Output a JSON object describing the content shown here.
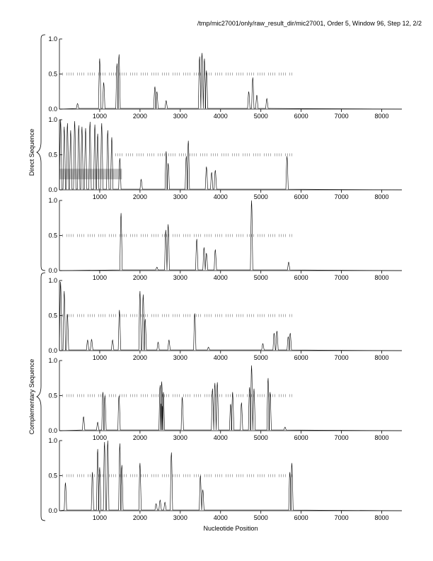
{
  "chart_data": {
    "type": "line",
    "title": "/tmp/mic27001/only/raw_result_dir/mic27001, Order 5, Window 96, Step 12, 2/2",
    "xlabel": "Nucleotide Position",
    "group_labels": [
      "Direct Sequence",
      "Complementary Sequence"
    ],
    "xlim": [
      0,
      8500
    ],
    "ylim": [
      0,
      1
    ],
    "x_ticks": [
      1000,
      2000,
      3000,
      4000,
      5000,
      6000,
      7000,
      8000
    ],
    "x_tick_labels": [
      "1000",
      "2000",
      "3000",
      "4000",
      "5000",
      "6000",
      "7000",
      "8000"
    ],
    "y_ticks": [
      0,
      0.5,
      1
    ],
    "y_tick_labels": [
      "0.0",
      "0.5",
      "1.0"
    ],
    "colors": {
      "line": "#000000",
      "band": "#c0c0c0",
      "dots": "#555555"
    },
    "panels": [
      {
        "name": "direct-frame-1",
        "dotted_level": 0.5,
        "dotted_range": [
          80,
          5800
        ],
        "peaks": [
          [
            450,
            0.08
          ],
          [
            1000,
            0.72
          ],
          [
            1100,
            0.38
          ],
          [
            1430,
            0.65
          ],
          [
            1480,
            0.78
          ],
          [
            2370,
            0.32
          ],
          [
            2420,
            0.25
          ],
          [
            2650,
            0.12
          ],
          [
            3480,
            0.75
          ],
          [
            3540,
            0.8
          ],
          [
            3600,
            0.72
          ],
          [
            3650,
            0.55
          ],
          [
            4700,
            0.25
          ],
          [
            4800,
            0.45
          ],
          [
            4900,
            0.2
          ],
          [
            5150,
            0.15
          ]
        ]
      },
      {
        "name": "direct-frame-2",
        "dotted_level": 0.5,
        "dotted_range": [
          1400,
          5800
        ],
        "band": {
          "x_range": [
            0,
            1550
          ],
          "y_range": [
            0.15,
            0.3
          ]
        },
        "peaks": [
          [
            30,
            1.0
          ],
          [
            120,
            0.9
          ],
          [
            200,
            0.95
          ],
          [
            280,
            0.85
          ],
          [
            380,
            0.98
          ],
          [
            480,
            0.92
          ],
          [
            560,
            0.9
          ],
          [
            650,
            0.88
          ],
          [
            760,
            0.97
          ],
          [
            880,
            0.93
          ],
          [
            950,
            0.8
          ],
          [
            1050,
            0.95
          ],
          [
            1200,
            0.85
          ],
          [
            1300,
            0.75
          ],
          [
            1500,
            0.45
          ],
          [
            2030,
            0.15
          ],
          [
            2650,
            0.55
          ],
          [
            2700,
            0.38
          ],
          [
            3150,
            0.48
          ],
          [
            3200,
            0.7
          ],
          [
            3650,
            0.33
          ],
          [
            3780,
            0.25
          ],
          [
            3870,
            0.28
          ],
          [
            5650,
            0.48
          ]
        ]
      },
      {
        "name": "direct-frame-3",
        "dotted_level": 0.5,
        "dotted_range": [
          80,
          5800
        ],
        "peaks": [
          [
            1530,
            0.82
          ],
          [
            2420,
            0.05
          ],
          [
            2640,
            0.58
          ],
          [
            2700,
            0.66
          ],
          [
            3410,
            0.45
          ],
          [
            3590,
            0.33
          ],
          [
            3650,
            0.25
          ],
          [
            3870,
            0.3
          ],
          [
            4770,
            1.0
          ],
          [
            5690,
            0.12
          ]
        ]
      },
      {
        "name": "complementary-frame-1",
        "dotted_level": 0.5,
        "dotted_range": [
          80,
          5800
        ],
        "peaks": [
          [
            30,
            0.98
          ],
          [
            120,
            0.85
          ],
          [
            200,
            0.52
          ],
          [
            700,
            0.15
          ],
          [
            800,
            0.16
          ],
          [
            1320,
            0.15
          ],
          [
            1490,
            0.58
          ],
          [
            2000,
            0.85
          ],
          [
            2080,
            0.8
          ],
          [
            2130,
            0.45
          ],
          [
            2450,
            0.12
          ],
          [
            2720,
            0.15
          ],
          [
            3360,
            0.53
          ],
          [
            3700,
            0.05
          ],
          [
            5050,
            0.1
          ],
          [
            5330,
            0.25
          ],
          [
            5400,
            0.28
          ],
          [
            5680,
            0.2
          ],
          [
            5730,
            0.25
          ]
        ]
      },
      {
        "name": "complementary-frame-2",
        "dotted_level": 0.5,
        "dotted_range": [
          80,
          5800
        ],
        "peaks": [
          [
            600,
            0.2
          ],
          [
            950,
            0.12
          ],
          [
            1080,
            0.55
          ],
          [
            1130,
            0.5
          ],
          [
            1480,
            0.5
          ],
          [
            2500,
            0.65
          ],
          [
            2540,
            0.7
          ],
          [
            2580,
            0.55
          ],
          [
            3050,
            0.48
          ],
          [
            3800,
            0.6
          ],
          [
            3860,
            0.68
          ],
          [
            3920,
            0.69
          ],
          [
            4250,
            0.38
          ],
          [
            4300,
            0.55
          ],
          [
            4520,
            0.4
          ],
          [
            4720,
            0.62
          ],
          [
            4770,
            0.93
          ],
          [
            4830,
            0.6
          ],
          [
            5180,
            0.75
          ],
          [
            5230,
            0.55
          ],
          [
            5600,
            0.05
          ]
        ]
      },
      {
        "name": "complementary-frame-3",
        "dotted_level": 0.5,
        "dotted_range": [
          80,
          5800
        ],
        "peaks": [
          [
            150,
            0.4
          ],
          [
            820,
            0.55
          ],
          [
            950,
            0.88
          ],
          [
            1000,
            0.62
          ],
          [
            1120,
            0.98
          ],
          [
            1200,
            1.0
          ],
          [
            1500,
            0.96
          ],
          [
            1550,
            0.65
          ],
          [
            2000,
            0.68
          ],
          [
            2400,
            0.1
          ],
          [
            2500,
            0.15
          ],
          [
            2620,
            0.12
          ],
          [
            2780,
            0.83
          ],
          [
            3500,
            0.5
          ],
          [
            3560,
            0.3
          ],
          [
            5720,
            0.55
          ],
          [
            5770,
            0.68
          ]
        ]
      }
    ]
  }
}
